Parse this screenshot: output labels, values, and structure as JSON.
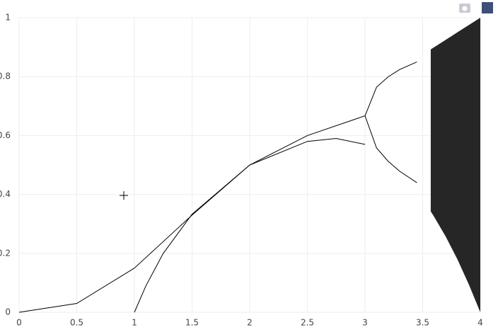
{
  "chart_data": {
    "type": "line",
    "xlim": [
      0,
      4
    ],
    "ylim": [
      0,
      1
    ],
    "xticks": [
      0,
      0.5,
      1,
      1.5,
      2,
      2.5,
      3,
      3.5,
      4
    ],
    "yticks": [
      0,
      0.2,
      0.4,
      0.6,
      0.8,
      1
    ],
    "grid": true,
    "series": [
      {
        "color": "#000000",
        "x": [
          0,
          0.5,
          1,
          1.5,
          2,
          2.5,
          2.75,
          3
        ],
        "values": [
          0,
          0.03,
          0.15,
          0.33,
          0.5,
          0.58,
          0.59,
          0.57
        ]
      },
      {
        "color": "#000000",
        "x": [
          1,
          1.1,
          1.25,
          1.5,
          2,
          2.5,
          3
        ],
        "values": [
          0,
          0.09,
          0.2,
          0.333,
          0.5,
          0.6,
          0.667
        ]
      },
      {
        "color": "#000000",
        "x": [
          3,
          3.1,
          3.2,
          3.3,
          3.45
        ],
        "values": [
          0.667,
          0.764,
          0.799,
          0.824,
          0.85
        ]
      },
      {
        "color": "#000000",
        "x": [
          3,
          3.1,
          3.2,
          3.3,
          3.45
        ],
        "values": [
          0.667,
          0.558,
          0.513,
          0.479,
          0.44
        ]
      },
      {
        "color": "#000000",
        "x": [
          3.57,
          3.6,
          3.7,
          3.8,
          3.9,
          4
        ],
        "values": [
          0.8925,
          0.9,
          0.925,
          0.95,
          0.975,
          1
        ],
        "lower": [
          0.3425,
          0.324,
          0.257,
          0.181,
          0.095,
          0
        ]
      }
    ]
  }
}
